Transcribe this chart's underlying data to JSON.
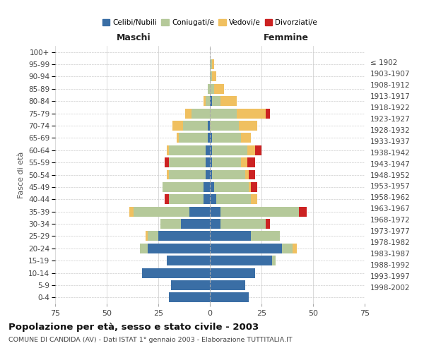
{
  "age_groups": [
    "0-4",
    "5-9",
    "10-14",
    "15-19",
    "20-24",
    "25-29",
    "30-34",
    "35-39",
    "40-44",
    "45-49",
    "50-54",
    "55-59",
    "60-64",
    "65-69",
    "70-74",
    "75-79",
    "80-84",
    "85-89",
    "90-94",
    "95-99",
    "100+"
  ],
  "birth_years": [
    "1998-2002",
    "1993-1997",
    "1988-1992",
    "1983-1987",
    "1978-1982",
    "1973-1977",
    "1968-1972",
    "1963-1967",
    "1958-1962",
    "1953-1957",
    "1948-1952",
    "1943-1947",
    "1938-1942",
    "1933-1937",
    "1928-1932",
    "1923-1927",
    "1918-1922",
    "1913-1917",
    "1908-1912",
    "1903-1907",
    "≤ 1902"
  ],
  "males": {
    "celibi": [
      20,
      19,
      33,
      21,
      30,
      25,
      14,
      10,
      3,
      3,
      2,
      2,
      2,
      1,
      1,
      0,
      0,
      0,
      0,
      0,
      0
    ],
    "coniugati": [
      0,
      0,
      0,
      0,
      4,
      5,
      10,
      27,
      17,
      20,
      18,
      18,
      18,
      14,
      12,
      9,
      2,
      1,
      0,
      0,
      0
    ],
    "vedovi": [
      0,
      0,
      0,
      0,
      0,
      1,
      0,
      2,
      0,
      0,
      1,
      0,
      1,
      1,
      5,
      3,
      1,
      0,
      0,
      0,
      0
    ],
    "divorziati": [
      0,
      0,
      0,
      0,
      0,
      0,
      0,
      0,
      2,
      0,
      0,
      2,
      0,
      0,
      0,
      0,
      0,
      0,
      0,
      0,
      0
    ]
  },
  "females": {
    "nubili": [
      19,
      17,
      22,
      30,
      35,
      20,
      5,
      5,
      3,
      2,
      1,
      1,
      1,
      1,
      0,
      0,
      1,
      0,
      0,
      0,
      0
    ],
    "coniugate": [
      0,
      0,
      0,
      2,
      5,
      14,
      22,
      38,
      17,
      17,
      16,
      14,
      17,
      14,
      14,
      13,
      4,
      2,
      1,
      1,
      0
    ],
    "vedove": [
      0,
      0,
      0,
      0,
      2,
      0,
      0,
      0,
      3,
      1,
      2,
      3,
      4,
      5,
      9,
      14,
      8,
      5,
      2,
      1,
      0
    ],
    "divorziate": [
      0,
      0,
      0,
      0,
      0,
      0,
      2,
      4,
      0,
      3,
      3,
      4,
      3,
      0,
      0,
      2,
      0,
      0,
      0,
      0,
      0
    ]
  },
  "color_celibi": "#3a6ea5",
  "color_coniugati": "#b5c99a",
  "color_vedovi": "#f0c060",
  "color_divorziati": "#cc2222",
  "bg_color": "#ffffff",
  "grid_color": "#cccccc",
  "title": "Popolazione per età, sesso e stato civile - 2003",
  "subtitle": "COMUNE DI CANDIDA (AV) - Dati ISTAT 1° gennaio 2003 - Elaborazione TUTTITALIA.IT",
  "ylabel_left": "Fasce di età",
  "xlabel_left": "Maschi",
  "xlabel_right": "Femmine",
  "xlim": 75,
  "xticks": [
    -75,
    -50,
    -25,
    0,
    25,
    50,
    75
  ]
}
